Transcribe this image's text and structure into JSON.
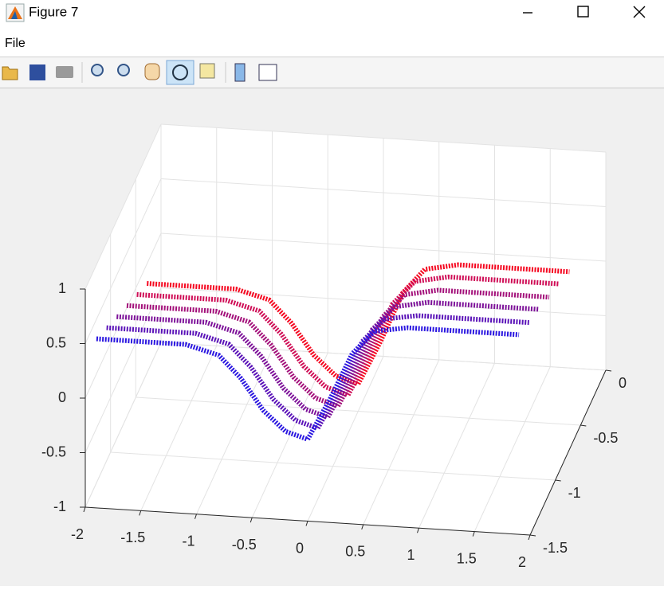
{
  "window": {
    "title": "Figure 7"
  },
  "menu": [
    "File"
  ],
  "chart_data": {
    "type": "scatter3d",
    "x": [
      -1.9,
      -1.5,
      -1.1,
      -0.8,
      -0.6,
      -0.4,
      -0.2,
      0,
      0.2,
      0.4,
      0.6,
      0.9,
      1.3,
      1.9
    ],
    "xlim": [
      -2,
      2
    ],
    "xticks": [
      -2,
      -1.5,
      -1,
      -0.5,
      0,
      0.5,
      1,
      1.5,
      2
    ],
    "ylim": [
      -1.5,
      0
    ],
    "yticks": [
      -1.5,
      -1,
      -0.5,
      0
    ],
    "zlim": [
      -1,
      1
    ],
    "zticks": [
      -1,
      -0.5,
      0,
      0.5,
      1
    ],
    "grid": true,
    "series": [
      {
        "color": "#f5061f",
        "y": -0.5,
        "z": [
          0.05,
          0.05,
          0.05,
          -0.03,
          -0.23,
          -0.51,
          -0.69,
          -0.75,
          -0.35,
          0.11,
          0.34,
          0.4,
          0.4,
          0.4
        ]
      },
      {
        "color": "#cf0c55",
        "y": -0.7,
        "z": [
          0.15,
          0.15,
          0.15,
          0.07,
          -0.13,
          -0.41,
          -0.59,
          -0.65,
          -0.25,
          0.21,
          0.43,
          0.49,
          0.49,
          0.49
        ]
      },
      {
        "color": "#a3107a",
        "y": -0.9,
        "z": [
          0.25,
          0.25,
          0.25,
          0.17,
          -0.03,
          -0.31,
          -0.49,
          -0.55,
          -0.16,
          0.29,
          0.51,
          0.57,
          0.57,
          0.57
        ]
      },
      {
        "color": "#7d1199",
        "y": -1.1,
        "z": [
          0.35,
          0.35,
          0.35,
          0.27,
          0.07,
          -0.21,
          -0.39,
          -0.45,
          -0.06,
          0.38,
          0.6,
          0.66,
          0.66,
          0.66
        ]
      },
      {
        "color": "#5a12b8",
        "y": -1.3,
        "z": [
          0.45,
          0.45,
          0.45,
          0.37,
          0.17,
          -0.11,
          -0.29,
          -0.35,
          0.03,
          0.47,
          0.69,
          0.74,
          0.74,
          0.74
        ]
      },
      {
        "color": "#2a16e0",
        "y": -1.5,
        "z": [
          0.55,
          0.55,
          0.55,
          0.47,
          0.27,
          -0.01,
          -0.19,
          -0.25,
          0.13,
          0.56,
          0.78,
          0.83,
          0.83,
          0.83
        ]
      }
    ]
  }
}
